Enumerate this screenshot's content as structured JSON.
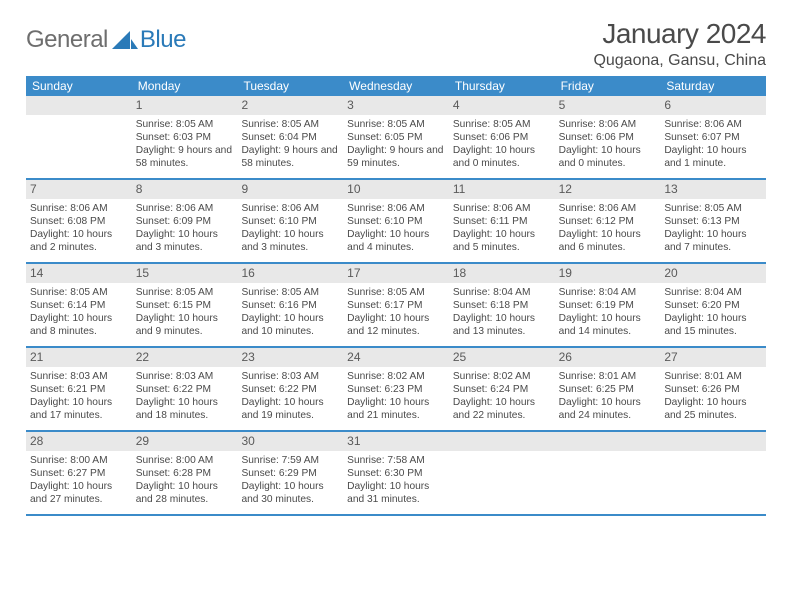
{
  "brand": {
    "part1": "General",
    "part2": "Blue"
  },
  "title": "January 2024",
  "location": "Qugaona, Gansu, China",
  "weekdays": [
    "Sunday",
    "Monday",
    "Tuesday",
    "Wednesday",
    "Thursday",
    "Friday",
    "Saturday"
  ],
  "colors": {
    "header_bg": "#3b8bc9",
    "header_text": "#ffffff",
    "daynum_bg": "#e8e8e8",
    "rule": "#3b8bc9",
    "body_text": "#4a4a4a"
  },
  "weeks": [
    [
      {
        "n": "",
        "sr": "",
        "ss": "",
        "dl": ""
      },
      {
        "n": "1",
        "sr": "Sunrise: 8:05 AM",
        "ss": "Sunset: 6:03 PM",
        "dl": "Daylight: 9 hours and 58 minutes."
      },
      {
        "n": "2",
        "sr": "Sunrise: 8:05 AM",
        "ss": "Sunset: 6:04 PM",
        "dl": "Daylight: 9 hours and 58 minutes."
      },
      {
        "n": "3",
        "sr": "Sunrise: 8:05 AM",
        "ss": "Sunset: 6:05 PM",
        "dl": "Daylight: 9 hours and 59 minutes."
      },
      {
        "n": "4",
        "sr": "Sunrise: 8:05 AM",
        "ss": "Sunset: 6:06 PM",
        "dl": "Daylight: 10 hours and 0 minutes."
      },
      {
        "n": "5",
        "sr": "Sunrise: 8:06 AM",
        "ss": "Sunset: 6:06 PM",
        "dl": "Daylight: 10 hours and 0 minutes."
      },
      {
        "n": "6",
        "sr": "Sunrise: 8:06 AM",
        "ss": "Sunset: 6:07 PM",
        "dl": "Daylight: 10 hours and 1 minute."
      }
    ],
    [
      {
        "n": "7",
        "sr": "Sunrise: 8:06 AM",
        "ss": "Sunset: 6:08 PM",
        "dl": "Daylight: 10 hours and 2 minutes."
      },
      {
        "n": "8",
        "sr": "Sunrise: 8:06 AM",
        "ss": "Sunset: 6:09 PM",
        "dl": "Daylight: 10 hours and 3 minutes."
      },
      {
        "n": "9",
        "sr": "Sunrise: 8:06 AM",
        "ss": "Sunset: 6:10 PM",
        "dl": "Daylight: 10 hours and 3 minutes."
      },
      {
        "n": "10",
        "sr": "Sunrise: 8:06 AM",
        "ss": "Sunset: 6:10 PM",
        "dl": "Daylight: 10 hours and 4 minutes."
      },
      {
        "n": "11",
        "sr": "Sunrise: 8:06 AM",
        "ss": "Sunset: 6:11 PM",
        "dl": "Daylight: 10 hours and 5 minutes."
      },
      {
        "n": "12",
        "sr": "Sunrise: 8:06 AM",
        "ss": "Sunset: 6:12 PM",
        "dl": "Daylight: 10 hours and 6 minutes."
      },
      {
        "n": "13",
        "sr": "Sunrise: 8:05 AM",
        "ss": "Sunset: 6:13 PM",
        "dl": "Daylight: 10 hours and 7 minutes."
      }
    ],
    [
      {
        "n": "14",
        "sr": "Sunrise: 8:05 AM",
        "ss": "Sunset: 6:14 PM",
        "dl": "Daylight: 10 hours and 8 minutes."
      },
      {
        "n": "15",
        "sr": "Sunrise: 8:05 AM",
        "ss": "Sunset: 6:15 PM",
        "dl": "Daylight: 10 hours and 9 minutes."
      },
      {
        "n": "16",
        "sr": "Sunrise: 8:05 AM",
        "ss": "Sunset: 6:16 PM",
        "dl": "Daylight: 10 hours and 10 minutes."
      },
      {
        "n": "17",
        "sr": "Sunrise: 8:05 AM",
        "ss": "Sunset: 6:17 PM",
        "dl": "Daylight: 10 hours and 12 minutes."
      },
      {
        "n": "18",
        "sr": "Sunrise: 8:04 AM",
        "ss": "Sunset: 6:18 PM",
        "dl": "Daylight: 10 hours and 13 minutes."
      },
      {
        "n": "19",
        "sr": "Sunrise: 8:04 AM",
        "ss": "Sunset: 6:19 PM",
        "dl": "Daylight: 10 hours and 14 minutes."
      },
      {
        "n": "20",
        "sr": "Sunrise: 8:04 AM",
        "ss": "Sunset: 6:20 PM",
        "dl": "Daylight: 10 hours and 15 minutes."
      }
    ],
    [
      {
        "n": "21",
        "sr": "Sunrise: 8:03 AM",
        "ss": "Sunset: 6:21 PM",
        "dl": "Daylight: 10 hours and 17 minutes."
      },
      {
        "n": "22",
        "sr": "Sunrise: 8:03 AM",
        "ss": "Sunset: 6:22 PM",
        "dl": "Daylight: 10 hours and 18 minutes."
      },
      {
        "n": "23",
        "sr": "Sunrise: 8:03 AM",
        "ss": "Sunset: 6:22 PM",
        "dl": "Daylight: 10 hours and 19 minutes."
      },
      {
        "n": "24",
        "sr": "Sunrise: 8:02 AM",
        "ss": "Sunset: 6:23 PM",
        "dl": "Daylight: 10 hours and 21 minutes."
      },
      {
        "n": "25",
        "sr": "Sunrise: 8:02 AM",
        "ss": "Sunset: 6:24 PM",
        "dl": "Daylight: 10 hours and 22 minutes."
      },
      {
        "n": "26",
        "sr": "Sunrise: 8:01 AM",
        "ss": "Sunset: 6:25 PM",
        "dl": "Daylight: 10 hours and 24 minutes."
      },
      {
        "n": "27",
        "sr": "Sunrise: 8:01 AM",
        "ss": "Sunset: 6:26 PM",
        "dl": "Daylight: 10 hours and 25 minutes."
      }
    ],
    [
      {
        "n": "28",
        "sr": "Sunrise: 8:00 AM",
        "ss": "Sunset: 6:27 PM",
        "dl": "Daylight: 10 hours and 27 minutes."
      },
      {
        "n": "29",
        "sr": "Sunrise: 8:00 AM",
        "ss": "Sunset: 6:28 PM",
        "dl": "Daylight: 10 hours and 28 minutes."
      },
      {
        "n": "30",
        "sr": "Sunrise: 7:59 AM",
        "ss": "Sunset: 6:29 PM",
        "dl": "Daylight: 10 hours and 30 minutes."
      },
      {
        "n": "31",
        "sr": "Sunrise: 7:58 AM",
        "ss": "Sunset: 6:30 PM",
        "dl": "Daylight: 10 hours and 31 minutes."
      },
      {
        "n": "",
        "sr": "",
        "ss": "",
        "dl": ""
      },
      {
        "n": "",
        "sr": "",
        "ss": "",
        "dl": ""
      },
      {
        "n": "",
        "sr": "",
        "ss": "",
        "dl": ""
      }
    ]
  ]
}
